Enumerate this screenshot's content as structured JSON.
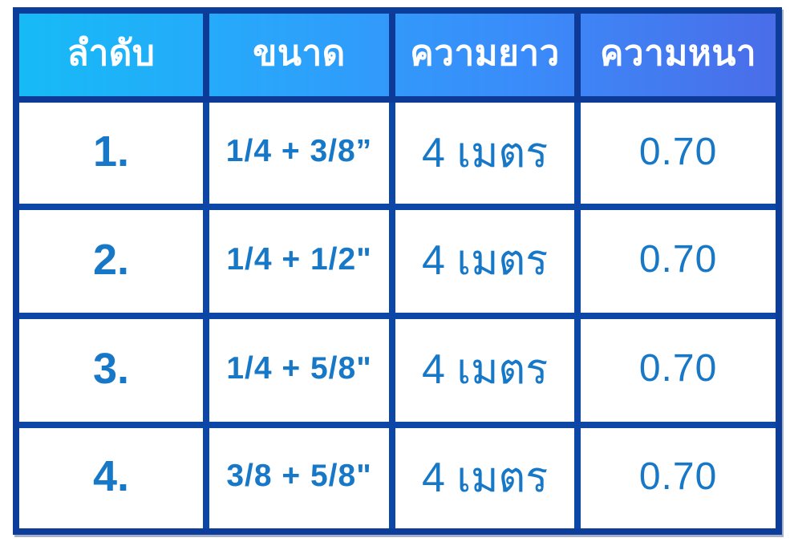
{
  "colors": {
    "header_gradient_start": "#16bbf6",
    "header_gradient_end": "#4a6de9",
    "header_border": "#0d3a96",
    "outer_border": "#0d3d9a",
    "body_border": "#0c47a8",
    "header_text": "#ffffff",
    "body_text": "#1878c8"
  },
  "table": {
    "columns": [
      {
        "key": "no",
        "label": "ลำดับ"
      },
      {
        "key": "size",
        "label": "ขนาด"
      },
      {
        "key": "length",
        "label": "ความยาว"
      },
      {
        "key": "thickness",
        "label": "ความหนา"
      }
    ],
    "rows": [
      {
        "no": "1.",
        "size": "1/4 + 3/8”",
        "length": "4 เมตร",
        "thickness": "0.70"
      },
      {
        "no": "2.",
        "size": "1/4 + 1/2\"",
        "length": "4 เมตร",
        "thickness": "0.70"
      },
      {
        "no": "3.",
        "size": "1/4 + 5/8\"",
        "length": "4 เมตร",
        "thickness": "0.70"
      },
      {
        "no": "4.",
        "size": "3/8 + 5/8\"",
        "length": "4 เมตร",
        "thickness": "0.70"
      }
    ]
  }
}
